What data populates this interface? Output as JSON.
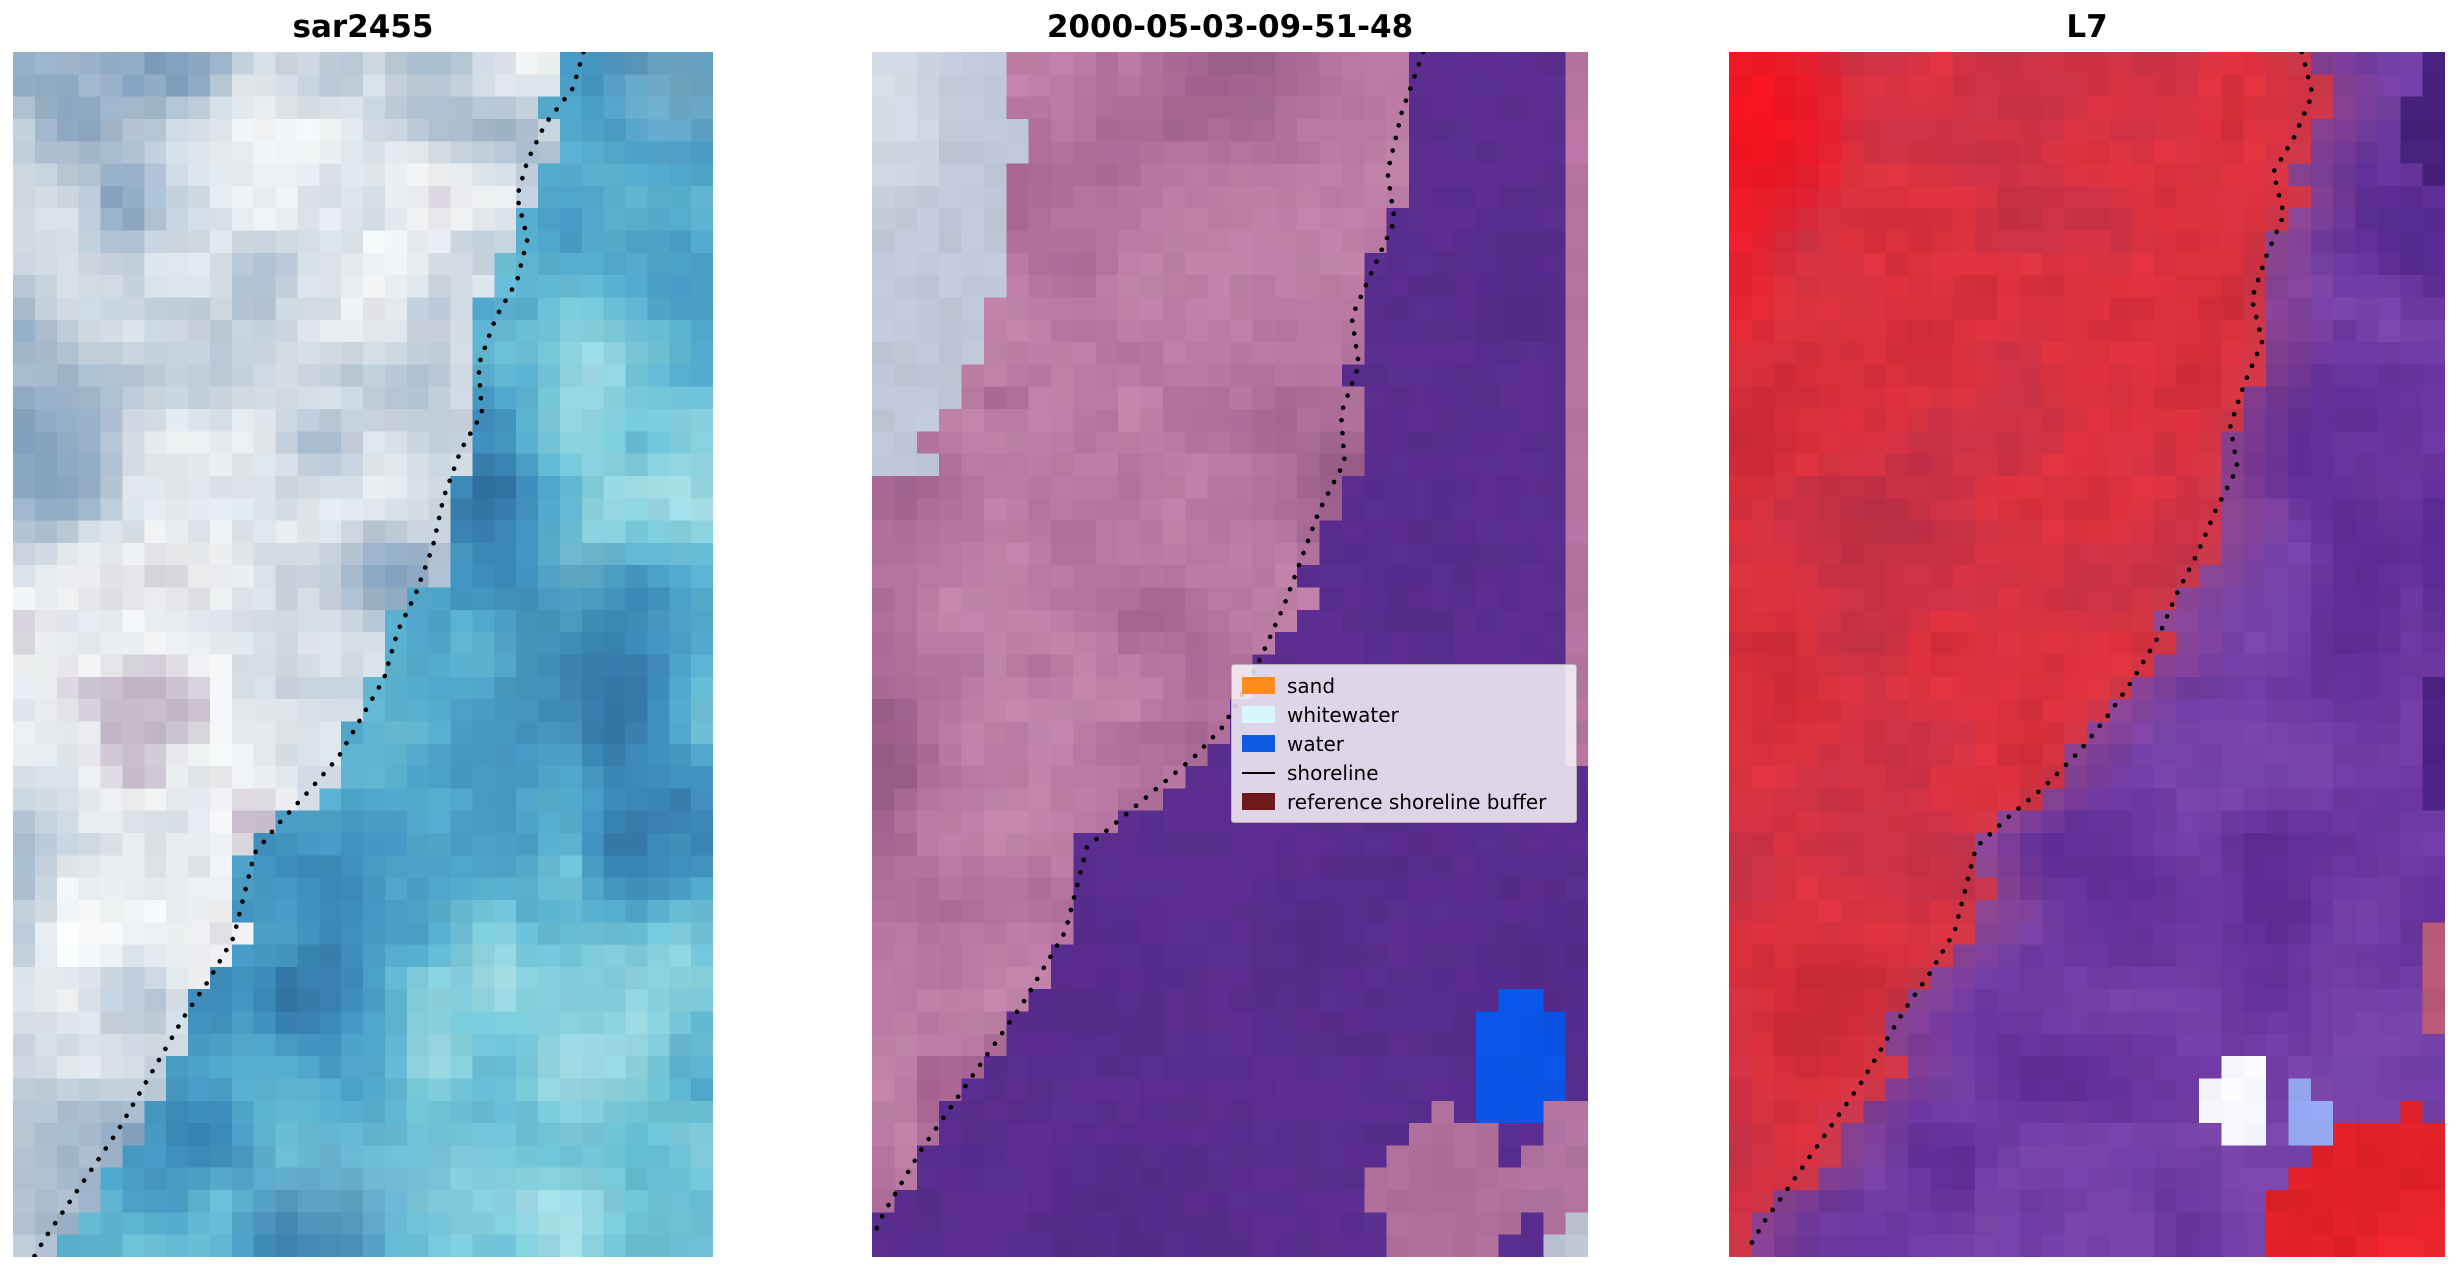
{
  "figure": {
    "background": "#ffffff"
  },
  "chart_data": {
    "type": "heatmap",
    "subtype": "satellite_image_triptych",
    "description": "Three co-registered satellite image subplots with a dotted mapped shoreline; middle panel is an image classification with legend.",
    "panels": [
      {
        "title": "sar2455",
        "shoreline": [
          [
            0.815,
            0.0
          ],
          [
            0.8,
            0.03
          ],
          [
            0.76,
            0.06
          ],
          [
            0.735,
            0.09
          ],
          [
            0.72,
            0.12
          ],
          [
            0.735,
            0.155
          ],
          [
            0.72,
            0.19
          ],
          [
            0.69,
            0.22
          ],
          [
            0.665,
            0.26
          ],
          [
            0.67,
            0.3
          ],
          [
            0.64,
            0.33
          ],
          [
            0.615,
            0.37
          ],
          [
            0.6,
            0.41
          ],
          [
            0.575,
            0.45
          ],
          [
            0.55,
            0.48
          ],
          [
            0.53,
            0.52
          ],
          [
            0.5,
            0.55
          ],
          [
            0.465,
            0.585
          ],
          [
            0.42,
            0.615
          ],
          [
            0.38,
            0.64
          ],
          [
            0.345,
            0.665
          ],
          [
            0.33,
            0.7
          ],
          [
            0.315,
            0.735
          ],
          [
            0.28,
            0.77
          ],
          [
            0.245,
            0.8
          ],
          [
            0.21,
            0.835
          ],
          [
            0.18,
            0.865
          ],
          [
            0.15,
            0.895
          ],
          [
            0.115,
            0.925
          ],
          [
            0.08,
            0.955
          ],
          [
            0.045,
            0.985
          ],
          [
            0.03,
            1.0
          ]
        ],
        "image": {
          "seed": 3,
          "boundary_offset": 0.0,
          "boundary_jitter": 0.05,
          "land": {
            "stops": [
              "#7f9fbd",
              "#a9bcce",
              "#cfd9e2",
              "#f3f5f6",
              "#c4b9c9"
            ],
            "scale": 5.2
          },
          "water": {
            "stops": [
              "#2e6f9e",
              "#3f8fbe",
              "#55accd",
              "#79c9da",
              "#a5dde4"
            ],
            "scale": 4.6
          },
          "patches": [
            {
              "x": 0.3,
              "y": 0.1,
              "rx": 0.16,
              "ry": 0.08,
              "color": "#f4f7f9",
              "alpha": 0.65
            },
            {
              "x": 0.05,
              "y": 0.33,
              "rx": 0.13,
              "ry": 0.09,
              "color": "#6e95b6",
              "alpha": 0.55
            },
            {
              "x": 0.13,
              "y": 0.735,
              "rx": 0.11,
              "ry": 0.04,
              "color": "#fcfdfd",
              "alpha": 0.9
            },
            {
              "x": 0.07,
              "y": 0.6,
              "rx": 0.1,
              "ry": 0.05,
              "color": "#e9eef2",
              "alpha": 0.5
            },
            {
              "x": 0.95,
              "y": 0.03,
              "rx": 0.12,
              "ry": 0.06,
              "color": "#bfe7ea",
              "alpha": 0.45
            },
            {
              "x": 0.8,
              "y": 0.5,
              "rx": 0.13,
              "ry": 0.11,
              "color": "#2f6f9d",
              "alpha": 0.45
            },
            {
              "x": 0.55,
              "y": 0.94,
              "rx": 0.3,
              "ry": 0.07,
              "color": "#9adde7",
              "alpha": 0.45
            },
            {
              "x": 0.88,
              "y": 0.9,
              "rx": 0.14,
              "ry": 0.08,
              "color": "#57b7cd",
              "alpha": 0.4
            }
          ]
        }
      },
      {
        "title": "2000-05-03-09-51-48",
        "shoreline": [
          [
            0.77,
            0.0
          ],
          [
            0.74,
            0.05
          ],
          [
            0.72,
            0.1
          ],
          [
            0.73,
            0.14
          ],
          [
            0.7,
            0.18
          ],
          [
            0.67,
            0.22
          ],
          [
            0.68,
            0.26
          ],
          [
            0.655,
            0.3
          ],
          [
            0.66,
            0.34
          ],
          [
            0.625,
            0.38
          ],
          [
            0.6,
            0.42
          ],
          [
            0.575,
            0.46
          ],
          [
            0.545,
            0.5
          ],
          [
            0.52,
            0.53
          ],
          [
            0.49,
            0.56
          ],
          [
            0.45,
            0.585
          ],
          [
            0.4,
            0.61
          ],
          [
            0.35,
            0.635
          ],
          [
            0.3,
            0.66
          ],
          [
            0.285,
            0.695
          ],
          [
            0.27,
            0.73
          ],
          [
            0.24,
            0.76
          ],
          [
            0.21,
            0.79
          ],
          [
            0.175,
            0.82
          ],
          [
            0.14,
            0.85
          ],
          [
            0.105,
            0.88
          ],
          [
            0.07,
            0.91
          ],
          [
            0.04,
            0.94
          ],
          [
            0.015,
            0.965
          ],
          [
            0.0,
            0.985
          ]
        ],
        "image": {
          "seed": 11,
          "boundary_offset": 0.012,
          "boundary_jitter": 0.03,
          "land": {
            "stops": [
              "#9a5d89",
              "#aa6a96",
              "#b877a2",
              "#c385ab",
              "#a76492"
            ],
            "scale": 4.8
          },
          "water": {
            "stops": [
              "#552a89",
              "#5b2e90",
              "#572b8c"
            ],
            "scale": 3
          },
          "patches": [
            {
              "x": -0.03,
              "y": 0.03,
              "rx": 0.23,
              "ry": 0.33,
              "color": "#bfc8d8",
              "alpha": 1,
              "hard": true,
              "jitter": 0.35
            },
            {
              "x": 0.02,
              "y": 0.04,
              "rx": 0.1,
              "ry": 0.12,
              "color": "#dde3ea",
              "alpha": 0.7
            },
            {
              "x": 1.02,
              "y": 0.3,
              "rx": 0.048,
              "ry": 0.46,
              "color": "#b673a0",
              "alpha": 1,
              "hard": true,
              "jitter": 0.2
            },
            {
              "x": 0.905,
              "y": 0.835,
              "rx": 0.075,
              "ry": 0.058,
              "color": "#0a55e8",
              "alpha": 1,
              "hard": true,
              "jitter": 0.25
            },
            {
              "x": 0.8,
              "y": 0.955,
              "rx": 0.1,
              "ry": 0.075,
              "color": "#af6e9a",
              "alpha": 1,
              "hard": true,
              "jitter": 0.3
            },
            {
              "x": 0.985,
              "y": 0.935,
              "rx": 0.075,
              "ry": 0.06,
              "color": "#b273a0",
              "alpha": 1,
              "hard": true,
              "jitter": 0.3
            },
            {
              "x": 1.0,
              "y": 1.0,
              "rx": 0.06,
              "ry": 0.045,
              "color": "#bcc6d5",
              "alpha": 1,
              "hard": true,
              "jitter": 0.3
            }
          ]
        }
      },
      {
        "title": "L7",
        "shoreline": [
          [
            0.8,
            0.0
          ],
          [
            0.815,
            0.035
          ],
          [
            0.79,
            0.07
          ],
          [
            0.76,
            0.1
          ],
          [
            0.775,
            0.135
          ],
          [
            0.75,
            0.17
          ],
          [
            0.73,
            0.205
          ],
          [
            0.745,
            0.24
          ],
          [
            0.72,
            0.275
          ],
          [
            0.7,
            0.31
          ],
          [
            0.71,
            0.345
          ],
          [
            0.68,
            0.38
          ],
          [
            0.655,
            0.415
          ],
          [
            0.625,
            0.45
          ],
          [
            0.6,
            0.485
          ],
          [
            0.565,
            0.52
          ],
          [
            0.53,
            0.55
          ],
          [
            0.49,
            0.58
          ],
          [
            0.44,
            0.61
          ],
          [
            0.39,
            0.635
          ],
          [
            0.345,
            0.66
          ],
          [
            0.33,
            0.695
          ],
          [
            0.315,
            0.73
          ],
          [
            0.28,
            0.765
          ],
          [
            0.245,
            0.795
          ],
          [
            0.215,
            0.825
          ],
          [
            0.185,
            0.855
          ],
          [
            0.15,
            0.885
          ],
          [
            0.115,
            0.915
          ],
          [
            0.08,
            0.945
          ],
          [
            0.05,
            0.97
          ],
          [
            0.03,
            0.99
          ]
        ],
        "image": {
          "seed": 21,
          "boundary_offset": 0.012,
          "boundary_jitter": 0.03,
          "land": {
            "stops": [
              "#c02634",
              "#d02b37",
              "#df333f",
              "#ca3146",
              "#bb2f42"
            ],
            "scale": 4.5
          },
          "water": {
            "stops": [
              "#5e2d95",
              "#6c37a1",
              "#7a46ab",
              "#6a38a0",
              "#572b90"
            ],
            "scale": 4.2
          },
          "edge": {
            "water": {
              "color": "#a14a84",
              "width": 0.1,
              "strength": 0.6
            },
            "land": {
              "color": "#c24057",
              "width": 0.05,
              "strength": 0.45
            }
          },
          "patches": [
            {
              "x": 0.04,
              "y": 0.06,
              "rx": 0.15,
              "ry": 0.11,
              "color": "#fa0d18",
              "alpha": 0.85
            },
            {
              "x": 0.0,
              "y": 0.17,
              "rx": 0.09,
              "ry": 0.09,
              "color": "#f21523",
              "alpha": 0.6
            },
            {
              "x": 0.99,
              "y": 0.06,
              "rx": 0.04,
              "ry": 0.06,
              "color": "#46217c",
              "alpha": 1,
              "hard": true,
              "jitter": 0.3
            },
            {
              "x": 1.0,
              "y": 0.42,
              "rx": 0.05,
              "ry": 0.1,
              "color": "#54278e",
              "alpha": 0.7
            },
            {
              "x": 0.99,
              "y": 0.57,
              "rx": 0.035,
              "ry": 0.055,
              "color": "#4c2384",
              "alpha": 1,
              "hard": true,
              "jitter": 0.3
            },
            {
              "x": 1.0,
              "y": 0.77,
              "rx": 0.035,
              "ry": 0.05,
              "color": "#b75977",
              "alpha": 1,
              "hard": true,
              "jitter": 0.3
            },
            {
              "x": 0.93,
              "y": 0.985,
              "rx": 0.175,
              "ry": 0.105,
              "color": "#e02028",
              "alpha": 1,
              "hard": true,
              "jitter": 0.3
            },
            {
              "x": 0.97,
              "y": 1.0,
              "rx": 0.1,
              "ry": 0.06,
              "color": "#f22730",
              "alpha": 0.8
            },
            {
              "x": 0.715,
              "y": 0.875,
              "rx": 0.05,
              "ry": 0.035,
              "color": "#f7f8fd",
              "alpha": 1,
              "hard": true,
              "jitter": 0.25
            },
            {
              "x": 0.8,
              "y": 0.88,
              "rx": 0.035,
              "ry": 0.03,
              "color": "#92a5ee",
              "alpha": 1,
              "hard": true,
              "jitter": 0.25
            }
          ]
        }
      }
    ],
    "legend": {
      "position": "center-right of middle panel",
      "entries": [
        {
          "label": "sand",
          "kind": "patch",
          "color": "#ff8c1e"
        },
        {
          "label": "whitewater",
          "kind": "patch",
          "color": "#d9f7fb"
        },
        {
          "label": "water",
          "kind": "patch",
          "color": "#105be4"
        },
        {
          "label": "shoreline",
          "kind": "line",
          "color": "#000000"
        },
        {
          "label": "reference shoreline buffer",
          "kind": "patch",
          "color": "#6e1a1a"
        }
      ]
    }
  }
}
